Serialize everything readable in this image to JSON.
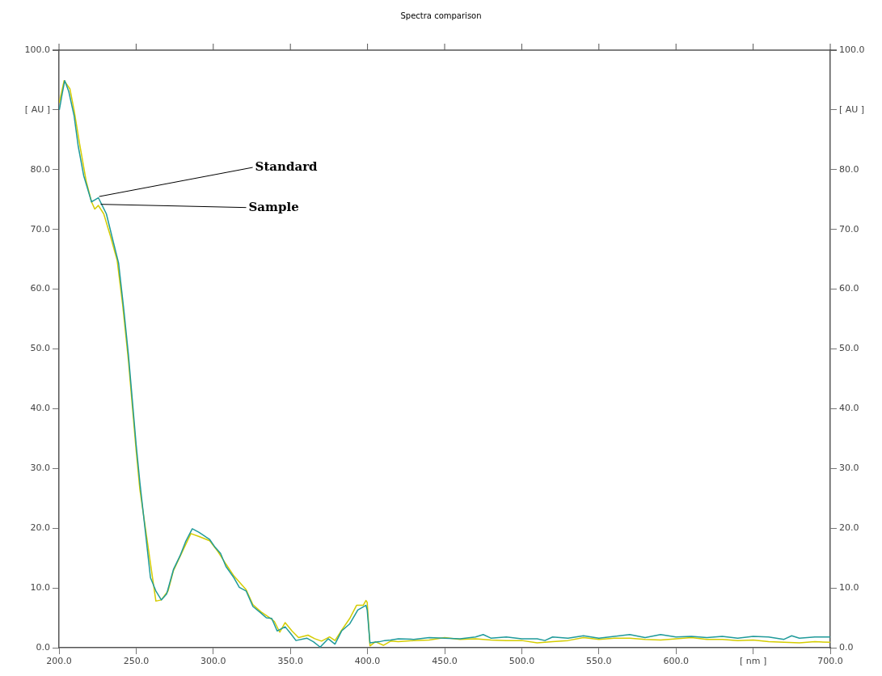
{
  "chart_data": {
    "type": "line",
    "title": "Spectra comparison",
    "xlim": [
      200,
      700
    ],
    "xticks": [
      {
        "value": 200,
        "label": "200.0"
      },
      {
        "value": 250,
        "label": "250.0"
      },
      {
        "value": 300,
        "label": "300.0"
      },
      {
        "value": 350,
        "label": "350.0"
      },
      {
        "value": 400,
        "label": "400.0"
      },
      {
        "value": 450,
        "label": "450.0"
      },
      {
        "value": 500,
        "label": "500.0"
      },
      {
        "value": 550,
        "label": "550.0"
      },
      {
        "value": 600,
        "label": "600.0"
      },
      {
        "value": 650,
        "label": "[ nm ]"
      },
      {
        "value": 700,
        "label": "700.0"
      }
    ],
    "ylim": [
      0,
      100
    ],
    "yticks": [
      {
        "value": 0,
        "label": "0.0"
      },
      {
        "value": 10,
        "label": "10.0"
      },
      {
        "value": 20,
        "label": "20.0"
      },
      {
        "value": 30,
        "label": "30.0"
      },
      {
        "value": 40,
        "label": "40.0"
      },
      {
        "value": 50,
        "label": "50.0"
      },
      {
        "value": 60,
        "label": "60.0"
      },
      {
        "value": 70,
        "label": "70.0"
      },
      {
        "value": 80,
        "label": "80.0"
      },
      {
        "value": 90,
        "label": "[ AU ]"
      },
      {
        "value": 100,
        "label": "100.0"
      }
    ],
    "y2lim": [
      0,
      100
    ],
    "y2ticks": [
      {
        "value": 0,
        "label": "0.0"
      },
      {
        "value": 10,
        "label": "10.0"
      },
      {
        "value": 20,
        "label": "20.0"
      },
      {
        "value": 30,
        "label": "30.0"
      },
      {
        "value": 40,
        "label": "40.0"
      },
      {
        "value": 50,
        "label": "50.0"
      },
      {
        "value": 60,
        "label": "60.0"
      },
      {
        "value": 70,
        "label": "70.0"
      },
      {
        "value": 80,
        "label": "80.0"
      },
      {
        "value": 90,
        "label": "[ AU ]"
      },
      {
        "value": 100,
        "label": "100.0"
      }
    ],
    "grid": false,
    "legend": false,
    "marker": "none",
    "line_style": "solid",
    "annotations": [
      {
        "text": "Standard",
        "x": 226,
        "y": 75.5
      },
      {
        "text": "Sample",
        "x": 227,
        "y": 74.2
      }
    ],
    "series": [
      {
        "color": "#1f9a9a",
        "x": [
          200.2,
          202,
          203.7,
          206.3,
          209.8,
          212.4,
          216,
          221.1,
          225.5,
          230.7,
          235.1,
          238.6,
          242,
          245,
          248,
          250,
          252.4,
          259.3,
          262.8,
          266.3,
          269.8,
          274.2,
          278.5,
          282,
          286.4,
          290.8,
          297.7,
          301.2,
          304.7,
          308.2,
          313.4,
          316.9,
          321.3,
          325.7,
          330.9,
          334.4,
          337.9,
          341.4,
          346.6,
          350.1,
          353.6,
          360.6,
          364.9,
          369.3,
          374.5,
          378.9,
          383.2,
          388.5,
          393.7,
          399,
          399.8,
          401.6,
          407.7,
          411.2,
          415,
          420,
          430,
          440,
          450,
          460,
          470,
          475,
          480,
          490,
          500,
          510,
          515,
          520,
          530,
          540,
          550,
          560,
          570,
          580,
          590,
          600,
          610,
          620,
          630,
          640,
          650,
          660,
          670,
          675,
          680,
          690,
          700
        ],
        "values": [
          90.0,
          92.6,
          94.9,
          93.1,
          89.0,
          84.0,
          79.0,
          74.6,
          75.3,
          72.6,
          68.0,
          64.4,
          56.6,
          49,
          40,
          34,
          27.7,
          11.7,
          9.5,
          8.0,
          9.0,
          13.1,
          15.4,
          17.7,
          19.9,
          19.3,
          18.1,
          16.8,
          15.8,
          13.6,
          11.7,
          10.1,
          9.5,
          6.9,
          5.8,
          5.0,
          4.9,
          2.8,
          3.5,
          2.4,
          1.2,
          1.6,
          1.0,
          0.1,
          1.5,
          0.6,
          2.8,
          4.0,
          6.3,
          7.1,
          6.3,
          0.8,
          1.0,
          1.2,
          1.3,
          1.5,
          1.4,
          1.7,
          1.6,
          1.5,
          1.8,
          2.2,
          1.6,
          1.8,
          1.5,
          1.5,
          1.2,
          1.8,
          1.6,
          2.0,
          1.6,
          1.9,
          2.2,
          1.7,
          2.2,
          1.8,
          1.9,
          1.7,
          1.9,
          1.6,
          1.9,
          1.8,
          1.4,
          2.0,
          1.6,
          1.8,
          1.8
        ]
      },
      {
        "color": "#d4cc00",
        "x": [
          200.2,
          203.3,
          207.1,
          209.8,
          213.3,
          217.6,
          221.1,
          223.2,
          225.5,
          229,
          233.3,
          237.7,
          241.2,
          245,
          248,
          250,
          252.4,
          262.8,
          266.3,
          270.7,
          274.2,
          282,
          285.5,
          290.8,
          297.7,
          303,
          308.2,
          313.4,
          321.3,
          325.7,
          330.9,
          336.1,
          339.6,
          343.1,
          346.6,
          351,
          355.3,
          361.4,
          365.8,
          370.2,
          375.4,
          378.9,
          382.4,
          388.5,
          392.9,
          397.2,
          399,
          399.8,
          401.6,
          405.1,
          410.3,
          415,
          420,
          430,
          440,
          450,
          460,
          470,
          480,
          490,
          500,
          510,
          520,
          530,
          540,
          550,
          560,
          570,
          580,
          590,
          600,
          610,
          620,
          630,
          640,
          650,
          660,
          670,
          680,
          690,
          700
        ],
        "values": [
          91.2,
          94.9,
          93.5,
          89.9,
          84.4,
          78.1,
          74.6,
          73.4,
          74.0,
          72.6,
          68.9,
          64.8,
          57.5,
          48,
          39,
          33,
          26.5,
          7.8,
          8.0,
          9.5,
          12.9,
          17.2,
          19.1,
          18.6,
          17.9,
          16.1,
          14.0,
          12.0,
          9.7,
          7.2,
          6.0,
          5.1,
          4.4,
          2.6,
          4.2,
          2.8,
          1.7,
          2.1,
          1.5,
          1.1,
          1.8,
          1.2,
          2.6,
          4.9,
          7.1,
          7.1,
          7.9,
          7.6,
          0.3,
          1.0,
          0.4,
          1.1,
          1.0,
          1.2,
          1.3,
          1.7,
          1.4,
          1.5,
          1.3,
          1.2,
          1.2,
          0.8,
          1.0,
          1.2,
          1.7,
          1.4,
          1.6,
          1.6,
          1.4,
          1.3,
          1.5,
          1.7,
          1.4,
          1.4,
          1.2,
          1.3,
          1.0,
          0.9,
          0.8,
          1.0,
          0.9
        ]
      }
    ]
  }
}
